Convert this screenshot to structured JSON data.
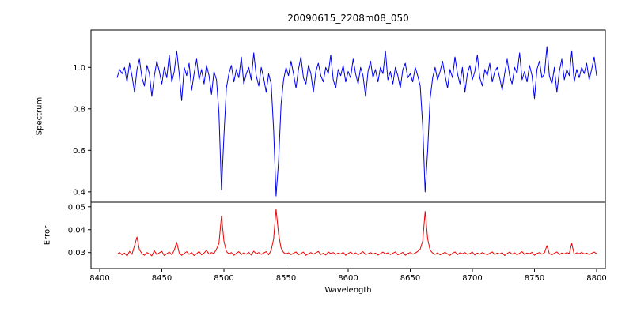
{
  "title": "20090615_2208m08_050",
  "chart_data": {
    "type": "line",
    "title": "20090615_2208m08_050",
    "xlabel": "Wavelength",
    "xlim": [
      8393,
      8807
    ],
    "x_ticks": [
      8400,
      8450,
      8500,
      8550,
      8600,
      8650,
      8700,
      8750,
      8800
    ],
    "x_start": 8414,
    "x_step": 2,
    "grid": false,
    "legend": "none",
    "absorption_line_centers": [
      8498,
      8542,
      8662
    ],
    "panels": [
      {
        "name": "spectrum",
        "ylabel": "Spectrum",
        "ylim": [
          0.35,
          1.18
        ],
        "y_ticks": [
          0.4,
          0.6,
          0.8,
          1.0
        ],
        "y_tick_labels": [
          "0.4",
          "0.6",
          "0.8",
          "1.0"
        ],
        "color": "#0000ee",
        "y": [
          0.95,
          0.99,
          0.97,
          1.0,
          0.93,
          1.02,
          0.96,
          0.88,
          0.99,
          1.04,
          0.95,
          0.91,
          1.01,
          0.97,
          0.86,
          0.96,
          1.03,
          0.98,
          0.92,
          1.0,
          0.95,
          1.06,
          0.93,
          0.98,
          1.08,
          0.97,
          0.84,
          1.0,
          0.96,
          1.02,
          0.89,
          0.97,
          1.04,
          0.94,
          0.99,
          0.92,
          1.01,
          0.96,
          0.87,
          0.98,
          0.94,
          0.78,
          0.41,
          0.67,
          0.9,
          0.97,
          1.01,
          0.93,
          0.99,
          0.95,
          1.05,
          0.92,
          0.97,
          1.0,
          0.94,
          1.07,
          0.96,
          0.91,
          1.0,
          0.95,
          0.88,
          0.97,
          0.92,
          0.7,
          0.38,
          0.55,
          0.82,
          0.94,
          1.0,
          0.96,
          1.03,
          0.97,
          0.9,
          0.99,
          1.05,
          0.95,
          0.92,
          1.01,
          0.97,
          0.88,
          0.98,
          1.02,
          0.96,
          0.93,
          1.0,
          0.97,
          1.06,
          0.94,
          0.9,
          0.99,
          0.96,
          1.01,
          0.93,
          0.98,
          0.95,
          1.04,
          0.97,
          0.92,
          1.0,
          0.96,
          0.86,
          0.98,
          1.03,
          0.95,
          0.99,
          0.93,
          1.0,
          0.97,
          1.08,
          0.94,
          0.98,
          0.92,
          1.0,
          0.96,
          0.9,
          0.99,
          1.02,
          0.95,
          0.97,
          0.93,
          1.0,
          0.96,
          0.91,
          0.72,
          0.4,
          0.6,
          0.85,
          0.95,
          1.0,
          0.94,
          0.98,
          1.03,
          0.96,
          0.9,
          0.99,
          0.95,
          1.05,
          0.97,
          0.92,
          1.0,
          0.88,
          0.97,
          1.01,
          0.94,
          0.98,
          1.06,
          0.95,
          0.91,
          0.99,
          0.96,
          1.02,
          0.93,
          0.98,
          1.0,
          0.95,
          0.89,
          0.97,
          1.04,
          0.96,
          0.92,
          1.0,
          0.97,
          1.07,
          0.94,
          0.98,
          0.93,
          1.01,
          0.96,
          0.85,
          0.99,
          1.03,
          0.95,
          0.97,
          1.1,
          0.96,
          0.92,
          1.0,
          0.88,
          0.98,
          1.04,
          0.94,
          0.99,
          0.96,
          1.08,
          0.93,
          0.99,
          0.95,
          1.0,
          0.97,
          1.02,
          0.94,
          0.99,
          1.05,
          0.96
        ]
      },
      {
        "name": "error",
        "ylabel": "Error",
        "ylim": [
          0.023,
          0.052
        ],
        "y_ticks": [
          0.03,
          0.04,
          0.05
        ],
        "y_tick_labels": [
          "0.03",
          "0.04",
          "0.05"
        ],
        "color": "#ee0000",
        "y": [
          0.0293,
          0.03,
          0.029,
          0.0298,
          0.0285,
          0.0305,
          0.0292,
          0.033,
          0.0368,
          0.0312,
          0.0296,
          0.0288,
          0.03,
          0.0294,
          0.0286,
          0.0308,
          0.0291,
          0.0299,
          0.0305,
          0.0287,
          0.0295,
          0.0302,
          0.029,
          0.031,
          0.0345,
          0.0298,
          0.0288,
          0.0296,
          0.0304,
          0.0292,
          0.03,
          0.0287,
          0.0295,
          0.0305,
          0.029,
          0.0298,
          0.031,
          0.0293,
          0.03,
          0.0296,
          0.0315,
          0.034,
          0.046,
          0.035,
          0.0305,
          0.0294,
          0.03,
          0.0288,
          0.0297,
          0.0304,
          0.0291,
          0.0299,
          0.0293,
          0.0301,
          0.0289,
          0.0306,
          0.0295,
          0.03,
          0.0292,
          0.0298,
          0.0304,
          0.029,
          0.031,
          0.036,
          0.049,
          0.038,
          0.032,
          0.03,
          0.0294,
          0.0299,
          0.0291,
          0.0297,
          0.0303,
          0.029,
          0.0296,
          0.0302,
          0.0288,
          0.0295,
          0.03,
          0.0293,
          0.0299,
          0.0305,
          0.0291,
          0.0297,
          0.0289,
          0.0303,
          0.0296,
          0.03,
          0.0292,
          0.0298,
          0.0294,
          0.0301,
          0.0288,
          0.0296,
          0.0302,
          0.0293,
          0.0299,
          0.029,
          0.0297,
          0.0304,
          0.0291,
          0.0295,
          0.03,
          0.0293,
          0.0298,
          0.0289,
          0.0296,
          0.0302,
          0.0294,
          0.0299,
          0.0291,
          0.0297,
          0.0303,
          0.029,
          0.0295,
          0.0301,
          0.0288,
          0.0296,
          0.03,
          0.0293,
          0.0298,
          0.0305,
          0.0315,
          0.035,
          0.048,
          0.036,
          0.031,
          0.0298,
          0.0292,
          0.0299,
          0.029,
          0.0296,
          0.0301,
          0.0294,
          0.0288,
          0.0297,
          0.0303,
          0.0291,
          0.0299,
          0.0295,
          0.03,
          0.0292,
          0.0296,
          0.0302,
          0.0289,
          0.0298,
          0.0293,
          0.03,
          0.0295,
          0.029,
          0.0297,
          0.0303,
          0.0291,
          0.0298,
          0.0294,
          0.03,
          0.0287,
          0.0296,
          0.0302,
          0.0293,
          0.0299,
          0.029,
          0.0297,
          0.0304,
          0.0292,
          0.0298,
          0.0295,
          0.0301,
          0.0288,
          0.0296,
          0.03,
          0.0293,
          0.0299,
          0.033,
          0.0295,
          0.029,
          0.0297,
          0.0303,
          0.0291,
          0.0298,
          0.0294,
          0.03,
          0.0296,
          0.034,
          0.0292,
          0.0299,
          0.0295,
          0.0301,
          0.0294,
          0.0298,
          0.0291,
          0.0297,
          0.0302,
          0.0295
        ]
      }
    ]
  }
}
